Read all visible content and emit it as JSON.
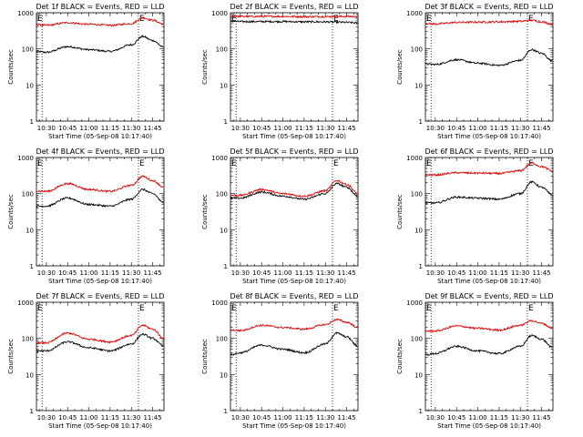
{
  "figure": {
    "time_labels": [
      "10:30",
      "10:45",
      "11:00",
      "11:15",
      "11:30",
      "11:45"
    ],
    "x_start": "10:23",
    "x_end": "11:53",
    "x_title": "Start Time (05-Sep-08 10:17:40)",
    "y_title": "Counts/sec",
    "y_scale": "log",
    "ylim": [
      1,
      1000
    ],
    "y_tick_labels": [
      "1",
      "10",
      "100",
      "1000"
    ],
    "marker_label": "E",
    "marker_times": [
      "10:23",
      "11:35"
    ],
    "dotted_lines": [
      "10:27",
      "11:35"
    ],
    "colors": {
      "events": "#000000",
      "lld": "#e00000",
      "frame": "#000000"
    }
  },
  "chart_data": [
    {
      "type": "line",
      "title": "Det 1f BLACK = Events, RED = LLD",
      "x": [
        "10:23",
        "10:30",
        "10:45",
        "11:00",
        "11:15",
        "11:30",
        "11:38",
        "11:45",
        "11:53"
      ],
      "series": [
        {
          "name": "Events",
          "color": "#000000",
          "values": [
            85,
            80,
            115,
            95,
            85,
            130,
            220,
            170,
            110
          ]
        },
        {
          "name": "LLD",
          "color": "#e00000",
          "values": [
            470,
            450,
            530,
            480,
            450,
            500,
            720,
            620,
            480
          ]
        }
      ]
    },
    {
      "type": "line",
      "title": "Det 2f BLACK = Events, RED = LLD",
      "x": [
        "10:23",
        "10:30",
        "10:45",
        "11:00",
        "11:15",
        "11:30",
        "11:38",
        "11:45",
        "11:53"
      ],
      "series": [
        {
          "name": "Events",
          "color": "#000000",
          "values": [
            580,
            570,
            570,
            570,
            560,
            560,
            550,
            540,
            520
          ]
        },
        {
          "name": "LLD",
          "color": "#e00000",
          "values": [
            800,
            790,
            790,
            790,
            780,
            780,
            790,
            790,
            780
          ]
        }
      ]
    },
    {
      "type": "line",
      "title": "Det 3f BLACK = Events, RED = LLD",
      "x": [
        "10:23",
        "10:30",
        "10:45",
        "11:00",
        "11:15",
        "11:30",
        "11:38",
        "11:45",
        "11:53"
      ],
      "series": [
        {
          "name": "Events",
          "color": "#000000",
          "values": [
            38,
            37,
            50,
            40,
            35,
            48,
            95,
            75,
            45
          ]
        },
        {
          "name": "LLD",
          "color": "#e00000",
          "values": [
            500,
            490,
            540,
            550,
            560,
            580,
            620,
            560,
            480
          ]
        }
      ]
    },
    {
      "type": "line",
      "title": "Det 4f BLACK = Events, RED = LLD",
      "x": [
        "10:23",
        "10:30",
        "10:45",
        "11:00",
        "11:15",
        "11:30",
        "11:38",
        "11:45",
        "11:53"
      ],
      "series": [
        {
          "name": "Events",
          "color": "#000000",
          "values": [
            45,
            45,
            75,
            50,
            45,
            70,
            130,
            100,
            55
          ]
        },
        {
          "name": "LLD",
          "color": "#e00000",
          "values": [
            120,
            115,
            190,
            130,
            115,
            170,
            300,
            230,
            150
          ]
        }
      ]
    },
    {
      "type": "line",
      "title": "Det 5f BLACK = Events, RED = LLD",
      "x": [
        "10:23",
        "10:30",
        "10:45",
        "11:00",
        "11:15",
        "11:30",
        "11:38",
        "11:45",
        "11:53"
      ],
      "series": [
        {
          "name": "Events",
          "color": "#000000",
          "values": [
            75,
            75,
            110,
            85,
            70,
            100,
            190,
            150,
            85
          ]
        },
        {
          "name": "LLD",
          "color": "#e00000",
          "values": [
            90,
            90,
            130,
            100,
            85,
            120,
            230,
            180,
            100
          ]
        }
      ]
    },
    {
      "type": "line",
      "title": "Det 6f BLACK = Events, RED = LLD",
      "x": [
        "10:23",
        "10:30",
        "10:45",
        "11:00",
        "11:15",
        "11:30",
        "11:38",
        "11:45",
        "11:53"
      ],
      "series": [
        {
          "name": "Events",
          "color": "#000000",
          "values": [
            55,
            55,
            80,
            75,
            70,
            100,
            210,
            150,
            90
          ]
        },
        {
          "name": "LLD",
          "color": "#e00000",
          "values": [
            330,
            330,
            380,
            370,
            360,
            430,
            700,
            560,
            420
          ]
        }
      ]
    },
    {
      "type": "line",
      "title": "Det 7f BLACK = Events, RED = LLD",
      "x": [
        "10:23",
        "10:30",
        "10:45",
        "11:00",
        "11:15",
        "11:30",
        "11:38",
        "11:45",
        "11:53"
      ],
      "series": [
        {
          "name": "Events",
          "color": "#000000",
          "values": [
            45,
            45,
            80,
            55,
            45,
            70,
            130,
            100,
            60
          ]
        },
        {
          "name": "LLD",
          "color": "#e00000",
          "values": [
            75,
            75,
            140,
            95,
            80,
            120,
            230,
            180,
            100
          ]
        }
      ]
    },
    {
      "type": "line",
      "title": "Det 8f BLACK = Events, RED = LLD",
      "x": [
        "10:23",
        "10:30",
        "10:45",
        "11:00",
        "11:15",
        "11:30",
        "11:38",
        "11:45",
        "11:53"
      ],
      "series": [
        {
          "name": "Events",
          "color": "#000000",
          "values": [
            35,
            40,
            65,
            50,
            40,
            70,
            140,
            110,
            60
          ]
        },
        {
          "name": "LLD",
          "color": "#e00000",
          "values": [
            170,
            165,
            230,
            200,
            180,
            240,
            330,
            280,
            200
          ]
        }
      ]
    },
    {
      "type": "line",
      "title": "Det 9f BLACK = Events, RED = LLD",
      "x": [
        "10:23",
        "10:30",
        "10:45",
        "11:00",
        "11:15",
        "11:30",
        "11:38",
        "11:45",
        "11:53"
      ],
      "series": [
        {
          "name": "Events",
          "color": "#000000",
          "values": [
            35,
            38,
            60,
            45,
            38,
            60,
            120,
            95,
            55
          ]
        },
        {
          "name": "LLD",
          "color": "#e00000",
          "values": [
            160,
            160,
            220,
            190,
            170,
            230,
            310,
            260,
            190
          ]
        }
      ]
    }
  ]
}
